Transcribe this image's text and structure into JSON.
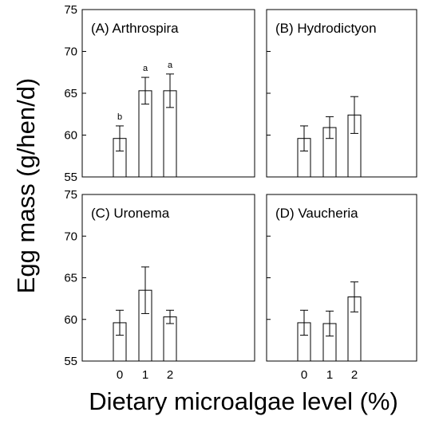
{
  "chart_data": {
    "type": "bar",
    "xlabel": "Dietary microalgae level (%)",
    "ylabel": "Egg mass (g/hen/d)",
    "categories": [
      "0",
      "1",
      "2"
    ],
    "ylim": [
      55,
      75
    ],
    "yticks": [
      55,
      60,
      65,
      70,
      75
    ],
    "grid": false,
    "panels": [
      {
        "title": "(A) Arthrospira",
        "values": [
          59.6,
          65.3,
          65.3
        ],
        "errors": [
          1.5,
          1.6,
          2.0
        ],
        "labels": [
          "b",
          "a",
          "a"
        ]
      },
      {
        "title": "(B) Hydrodictyon",
        "values": [
          59.6,
          60.9,
          62.4
        ],
        "errors": [
          1.5,
          1.3,
          2.2
        ],
        "labels": []
      },
      {
        "title": "(C) Uronema",
        "values": [
          59.6,
          63.5,
          60.3
        ],
        "errors": [
          1.5,
          2.8,
          0.8
        ],
        "labels": []
      },
      {
        "title": "(D) Vaucheria",
        "values": [
          59.6,
          59.5,
          62.7
        ],
        "errors": [
          1.5,
          1.5,
          1.8
        ],
        "labels": []
      }
    ]
  }
}
